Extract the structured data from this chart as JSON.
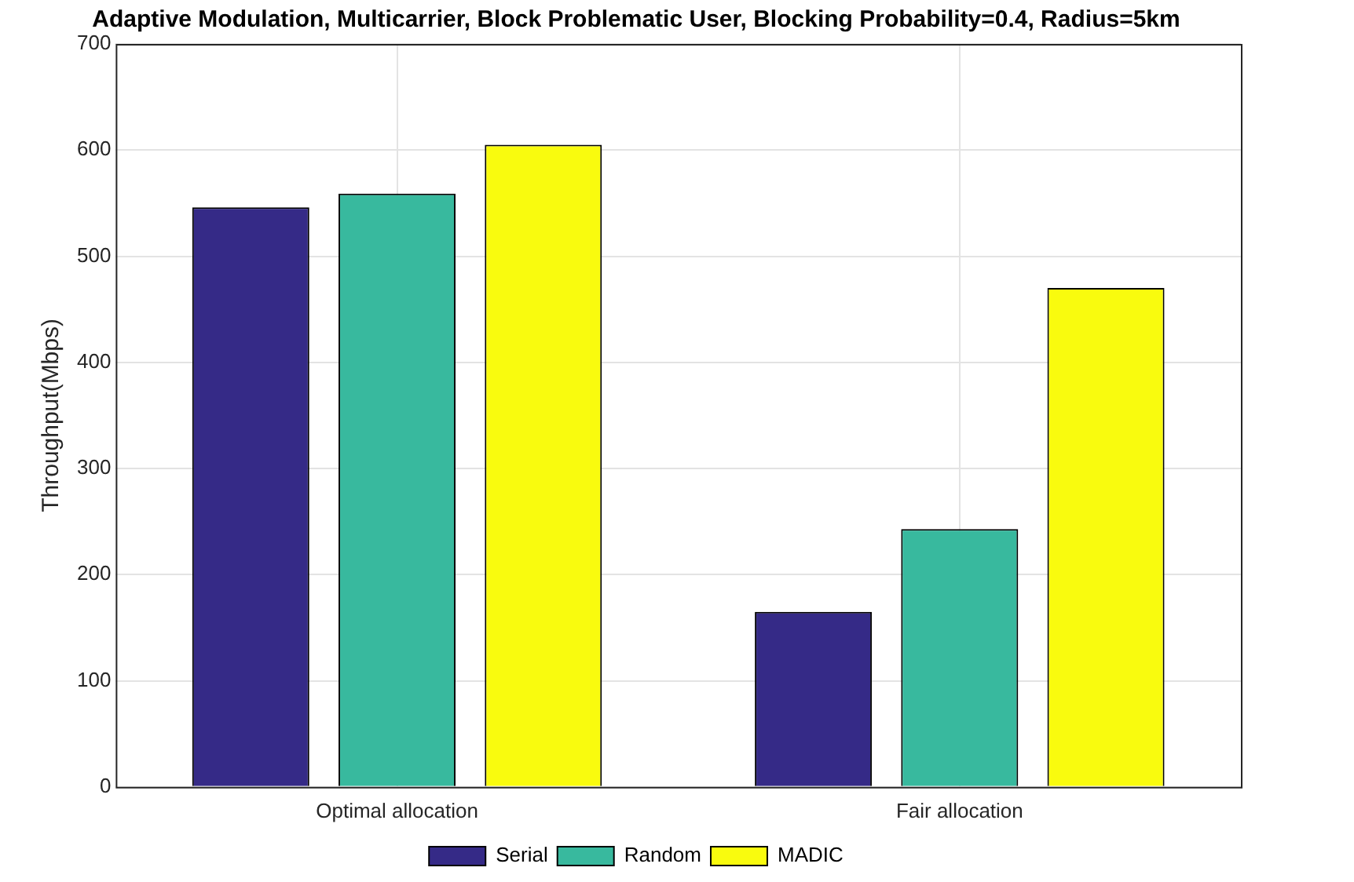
{
  "chart_data": {
    "type": "bar",
    "title": "Adaptive Modulation, Multicarrier, Block Problematic User, Blocking Probability=0.4, Radius=5km",
    "ylabel": "Throughput(Mbps)",
    "categories": [
      "Optimal allocation",
      "Fair allocation"
    ],
    "series": [
      {
        "name": "Serial",
        "color": "#352a87",
        "values": [
          546,
          165
        ]
      },
      {
        "name": "Random",
        "color": "#38b99e",
        "values": [
          559,
          243
        ]
      },
      {
        "name": "MADIC",
        "color": "#f9fb0e",
        "values": [
          605,
          470
        ]
      }
    ],
    "ylim": [
      0,
      700
    ],
    "yticks": [
      0,
      100,
      200,
      300,
      400,
      500,
      600,
      700
    ],
    "grid": true,
    "legend": "bottom"
  }
}
